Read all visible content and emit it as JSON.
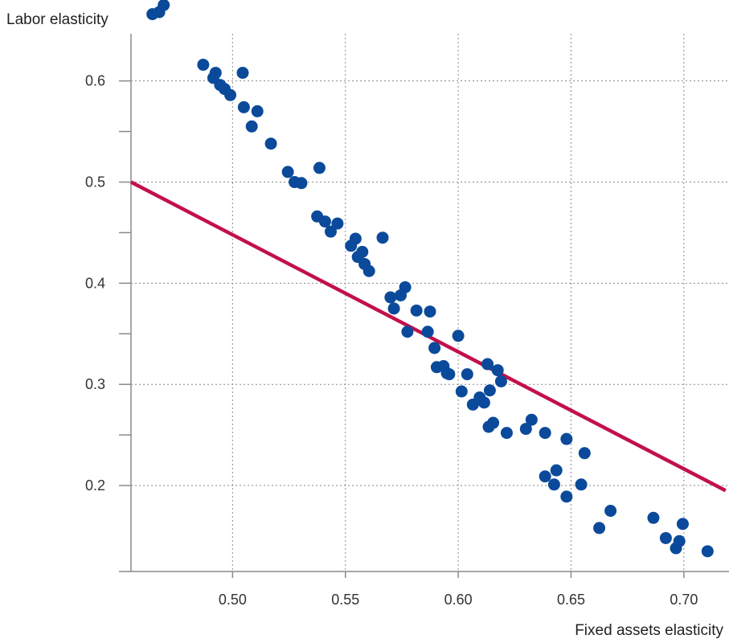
{
  "chart_data": {
    "type": "scatter",
    "xlabel": "Fixed assets elasticity",
    "ylabel": "Labor elasticity",
    "xlim": [
      0.455,
      0.72
    ],
    "ylim": [
      0.115,
      0.68
    ],
    "x_ticks": [
      0.5,
      0.55,
      0.6,
      0.65,
      0.7
    ],
    "x_tick_labels": [
      "0.50",
      "0.55",
      "0.60",
      "0.65",
      "0.70"
    ],
    "y_ticks": [
      0.2,
      0.3,
      0.4,
      0.5,
      0.6
    ],
    "y_tick_labels": [
      "0.2",
      "0.3",
      "0.4",
      "0.5",
      "0.6"
    ],
    "grid": true,
    "colors": {
      "points": "#0b4a9a",
      "trend_line": "#c2104a",
      "grid": "#8a8a8a"
    },
    "trend_line": {
      "x": [
        0.455,
        0.7185
      ],
      "y": [
        0.5,
        0.195
      ]
    },
    "points": [
      [
        0.4645,
        0.666
      ],
      [
        0.4675,
        0.668
      ],
      [
        0.4695,
        0.675
      ],
      [
        0.487,
        0.616
      ],
      [
        0.4915,
        0.603
      ],
      [
        0.4925,
        0.608
      ],
      [
        0.4945,
        0.596
      ],
      [
        0.4965,
        0.592
      ],
      [
        0.499,
        0.586
      ],
      [
        0.5045,
        0.608
      ],
      [
        0.505,
        0.574
      ],
      [
        0.5085,
        0.555
      ],
      [
        0.511,
        0.57
      ],
      [
        0.517,
        0.538
      ],
      [
        0.5245,
        0.51
      ],
      [
        0.5275,
        0.5
      ],
      [
        0.5305,
        0.499
      ],
      [
        0.5385,
        0.514
      ],
      [
        0.5375,
        0.466
      ],
      [
        0.541,
        0.461
      ],
      [
        0.5435,
        0.451
      ],
      [
        0.5465,
        0.459
      ],
      [
        0.5525,
        0.437
      ],
      [
        0.5545,
        0.444
      ],
      [
        0.5555,
        0.426
      ],
      [
        0.5575,
        0.431
      ],
      [
        0.5585,
        0.419
      ],
      [
        0.5605,
        0.412
      ],
      [
        0.5665,
        0.445
      ],
      [
        0.57,
        0.386
      ],
      [
        0.5715,
        0.375
      ],
      [
        0.5745,
        0.388
      ],
      [
        0.5765,
        0.396
      ],
      [
        0.5775,
        0.352
      ],
      [
        0.5815,
        0.373
      ],
      [
        0.5865,
        0.352
      ],
      [
        0.5875,
        0.372
      ],
      [
        0.5895,
        0.336
      ],
      [
        0.5905,
        0.317
      ],
      [
        0.5935,
        0.318
      ],
      [
        0.595,
        0.311
      ],
      [
        0.596,
        0.31
      ],
      [
        0.6,
        0.348
      ],
      [
        0.6015,
        0.293
      ],
      [
        0.604,
        0.31
      ],
      [
        0.6065,
        0.28
      ],
      [
        0.6095,
        0.287
      ],
      [
        0.6115,
        0.282
      ],
      [
        0.613,
        0.32
      ],
      [
        0.6135,
        0.258
      ],
      [
        0.614,
        0.294
      ],
      [
        0.6155,
        0.262
      ],
      [
        0.6175,
        0.314
      ],
      [
        0.619,
        0.303
      ],
      [
        0.6215,
        0.252
      ],
      [
        0.63,
        0.256
      ],
      [
        0.6325,
        0.265
      ],
      [
        0.6385,
        0.252
      ],
      [
        0.6385,
        0.209
      ],
      [
        0.6425,
        0.201
      ],
      [
        0.6435,
        0.215
      ],
      [
        0.648,
        0.189
      ],
      [
        0.648,
        0.246
      ],
      [
        0.6545,
        0.201
      ],
      [
        0.656,
        0.232
      ],
      [
        0.6625,
        0.158
      ],
      [
        0.6675,
        0.175
      ],
      [
        0.6865,
        0.168
      ],
      [
        0.692,
        0.148
      ],
      [
        0.6965,
        0.138
      ],
      [
        0.698,
        0.145
      ],
      [
        0.6995,
        0.162
      ],
      [
        0.7105,
        0.135
      ]
    ]
  }
}
